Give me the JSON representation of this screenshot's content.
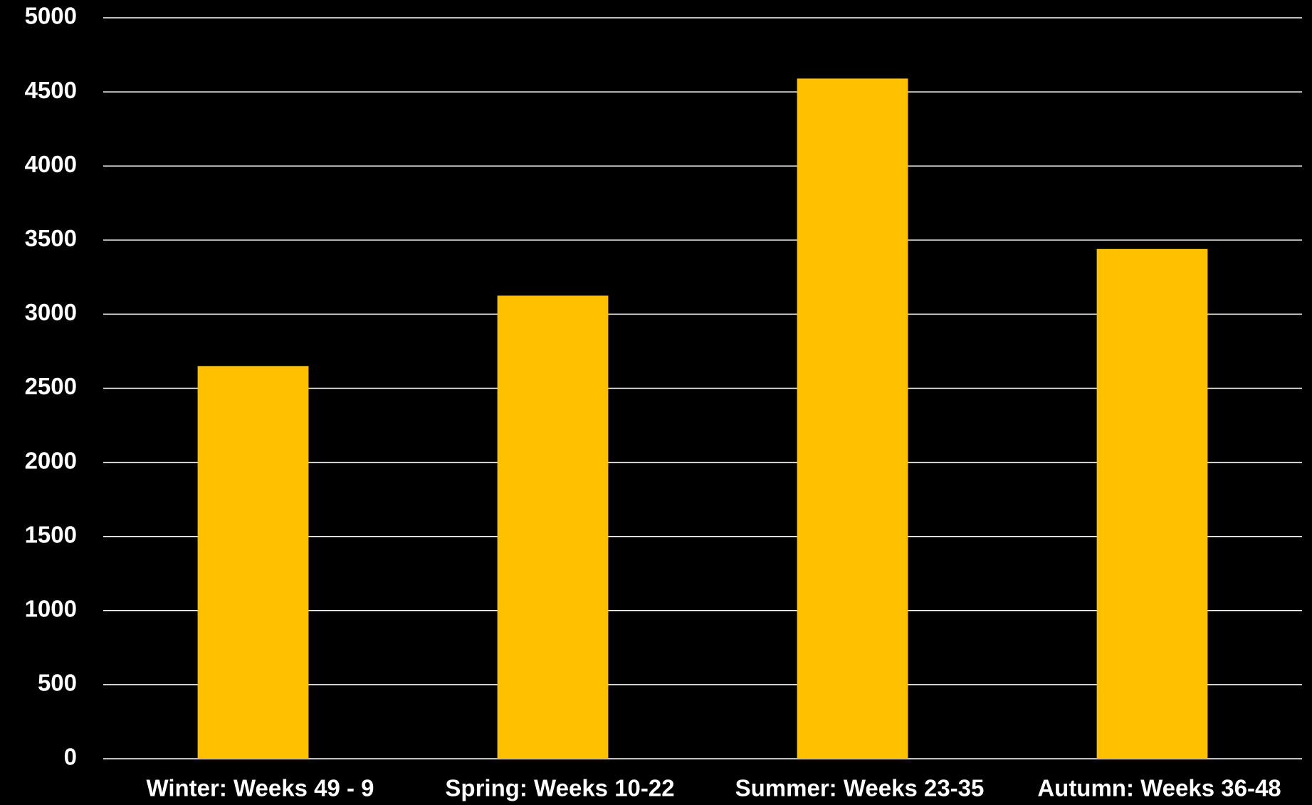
{
  "chart_data": {
    "type": "bar",
    "categories": [
      "Winter: Weeks 49 - 9",
      "Spring: Weeks 10-22",
      "Summer: Weeks 23-35",
      "Autumn: Weeks 36-48"
    ],
    "values": [
      2650,
      3125,
      4590,
      3440
    ],
    "color": "#ffc000",
    "ylim": [
      0,
      5000
    ],
    "yticks": [
      0,
      500,
      1000,
      1500,
      2000,
      2500,
      3000,
      3500,
      4000,
      4500,
      5000
    ],
    "grid": true
  }
}
